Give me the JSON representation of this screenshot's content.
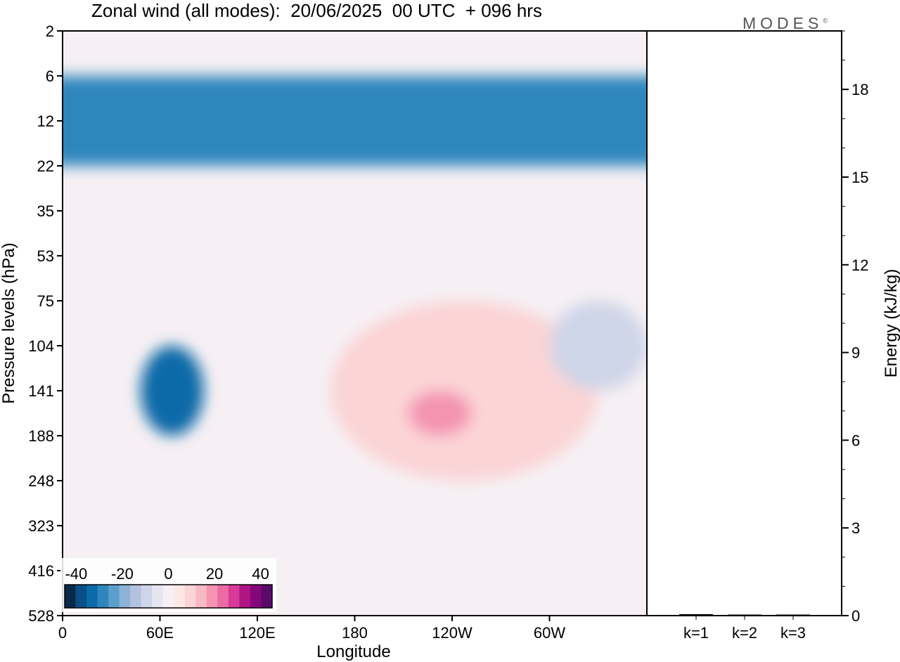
{
  "title": "Zonal wind (all modes):  20/06/2025  00 UTC  + 096 hrs",
  "brand": {
    "text": "MODES",
    "mark": "©"
  },
  "chart_data": [
    {
      "type": "heatmap",
      "title": "Zonal wind (all modes):  20/06/2025  00 UTC  + 096 hrs",
      "xlabel": "Longitude",
      "ylabel": "Pressure levels (hPa)",
      "x_ticks": [
        "0",
        "60E",
        "120E",
        "180",
        "120W",
        "60W"
      ],
      "x_tick_positions_deg": [
        0,
        60,
        120,
        180,
        240,
        300
      ],
      "xlim_deg": [
        0,
        360
      ],
      "y_ticks": [
        "2",
        "6",
        "12",
        "22",
        "35",
        "53",
        "75",
        "104",
        "141",
        "188",
        "248",
        "323",
        "416",
        "528"
      ],
      "colorbar": {
        "ticks": [
          "-40",
          "-20",
          "0",
          "20",
          "40"
        ],
        "range": [
          -45,
          45
        ],
        "colors": [
          "#0b2a4a",
          "#0a4f86",
          "#0b6aa8",
          "#2f86bd",
          "#5a9fcc",
          "#8db3d6",
          "#b3c2de",
          "#cfd5e8",
          "#e6e6f0",
          "#f6f0f4",
          "#fde8e6",
          "#fbd4d6",
          "#f8b8c4",
          "#f493b2",
          "#ec6ba4",
          "#d8399a",
          "#b01584",
          "#86077a",
          "#5a0a6a"
        ]
      },
      "features": [
        {
          "lon": [
            0,
            360
          ],
          "level": [
            "6",
            "22"
          ],
          "value": -30
        },
        {
          "lon": [
            60,
            75
          ],
          "level": [
            "104",
            "188"
          ],
          "value": -35
        },
        {
          "lon": [
            165,
            330
          ],
          "level": [
            "75",
            "248"
          ],
          "value": 10
        },
        {
          "lon": [
            225,
            240
          ],
          "level": [
            "141",
            "188"
          ],
          "value": 20
        },
        {
          "lon": [
            300,
            360
          ],
          "level": [
            "75",
            "141"
          ],
          "value": -10
        }
      ]
    },
    {
      "type": "bar",
      "ylabel": "Energy (kJ/kg)",
      "categories": [
        "k=1",
        "k=2",
        "k=3"
      ],
      "values": [
        0.05,
        0.02,
        0.01
      ],
      "ylim": [
        0,
        20
      ],
      "y_ticks": [
        "0",
        "3",
        "6",
        "9",
        "12",
        "15",
        "18"
      ]
    }
  ]
}
